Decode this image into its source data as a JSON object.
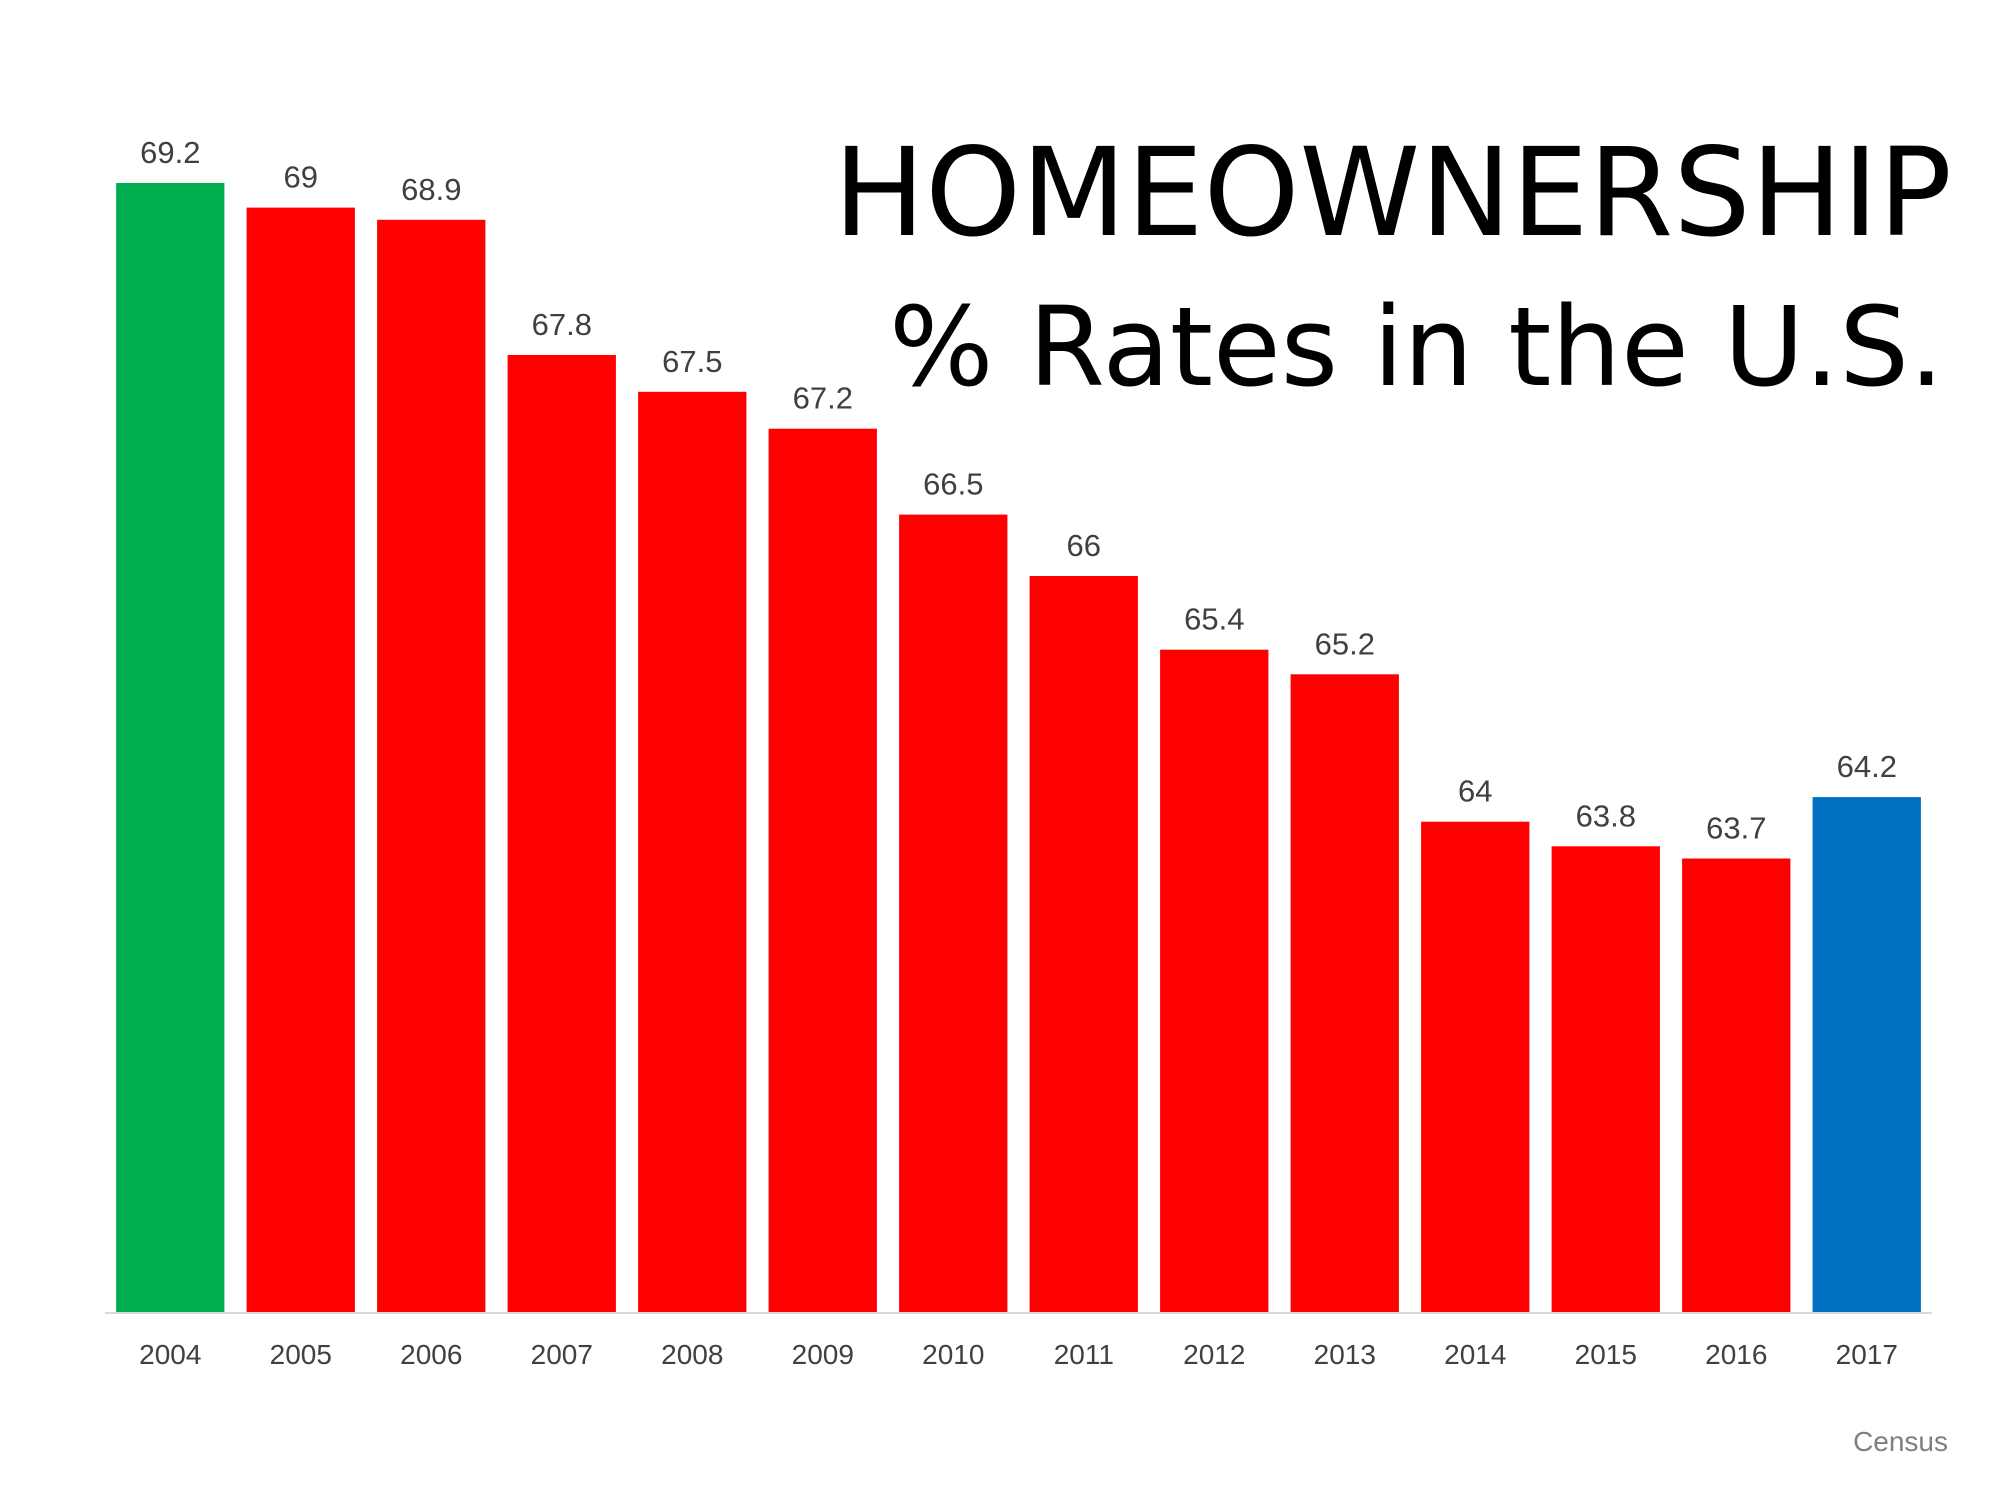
{
  "colors": {
    "first_year": "#00b050",
    "decline": "#ff0000",
    "latest_year": "#0070c0",
    "value_label": "#404040",
    "tick_label": "#404040",
    "axis_line": "#d9d9d9",
    "source": "#7f7f7f"
  },
  "chart_data": {
    "type": "bar",
    "title": "HOMEOWNERSHIP",
    "subtitle": "% Rates in the U.S.",
    "source": "Census",
    "categories": [
      "2004",
      "2005",
      "2006",
      "2007",
      "2008",
      "2009",
      "2010",
      "2011",
      "2012",
      "2013",
      "2014",
      "2015",
      "2016",
      "2017"
    ],
    "values": [
      69.2,
      69,
      68.9,
      67.8,
      67.5,
      67.2,
      66.5,
      66,
      65.4,
      65.2,
      64,
      63.8,
      63.7,
      64.2
    ],
    "bar_colors": [
      "#00b050",
      "#ff0000",
      "#ff0000",
      "#ff0000",
      "#ff0000",
      "#ff0000",
      "#ff0000",
      "#ff0000",
      "#ff0000",
      "#ff0000",
      "#ff0000",
      "#ff0000",
      "#ff0000",
      "#0070c0"
    ],
    "xlabel": "",
    "ylabel": "",
    "ylim": [
      60,
      69.2
    ],
    "y_axis_visible": false,
    "grid": false,
    "legend": "none",
    "data_labels": true
  }
}
